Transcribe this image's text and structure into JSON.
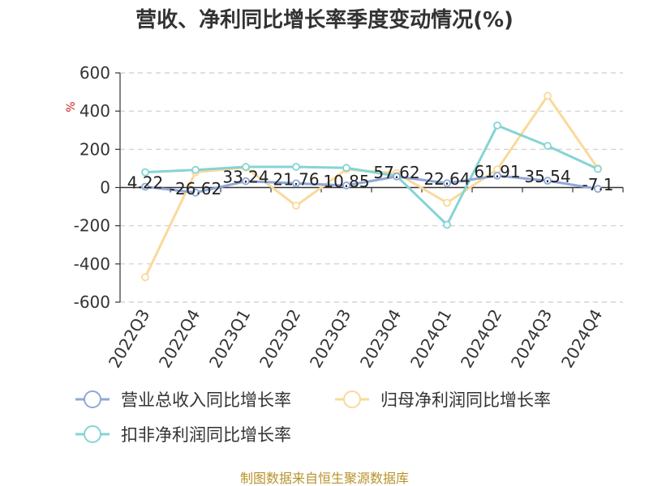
{
  "chart_data": {
    "type": "line",
    "title": "营收、净利同比增长率季度变动情况(%)",
    "unit": "%",
    "categories": [
      "2022Q3",
      "2022Q4",
      "2023Q1",
      "2023Q2",
      "2023Q3",
      "2023Q4",
      "2024Q1",
      "2024Q2",
      "2024Q3",
      "2024Q4"
    ],
    "ylim": [
      -600,
      600
    ],
    "yticks": [
      600,
      400,
      200,
      0,
      -200,
      -400,
      -600
    ],
    "grid": true,
    "legend_position": "bottom",
    "series": [
      {
        "name": "营业总收入同比增长率",
        "color": "#8fa8d8",
        "values": [
          4.22,
          -26.62,
          33.24,
          21.76,
          10.85,
          57.62,
          22.64,
          61.91,
          35.54,
          -7.1
        ],
        "labels": [
          "4.22",
          "-26.62",
          "33.24",
          "21.76",
          "10.85",
          "57.62",
          "22.64",
          "61.91",
          "35.54",
          "-7.1"
        ]
      },
      {
        "name": "归母净利润同比增长率",
        "color": "#fad99a",
        "values": [
          -470,
          80,
          105,
          -95,
          95,
          75,
          -80,
          95,
          480,
          100
        ]
      },
      {
        "name": "扣非净利润同比增长率",
        "color": "#86d4d4",
        "values": [
          80,
          92,
          108,
          108,
          103,
          60,
          -195,
          325,
          218,
          97
        ]
      }
    ],
    "source": "制图数据来自恒生聚源数据库"
  }
}
